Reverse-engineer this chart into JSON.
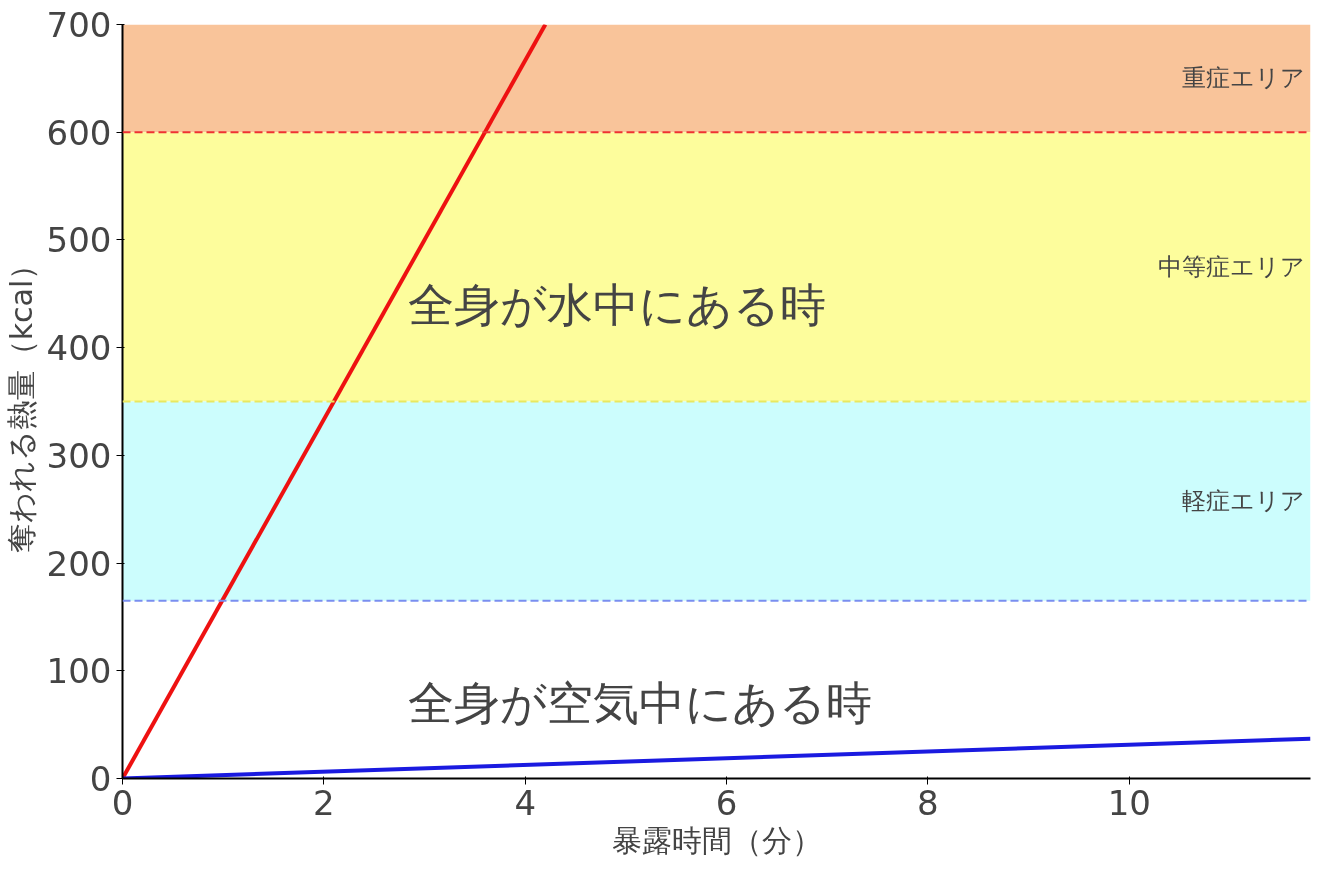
{
  "chart_data": {
    "type": "line",
    "xlabel": "暴露時間（分）",
    "ylabel": "奪われる熱量（kcal）",
    "xlim": [
      0,
      11.8
    ],
    "ylim": [
      0,
      700
    ],
    "xticks": [
      0,
      2,
      4,
      6,
      8,
      10
    ],
    "yticks": [
      0,
      100,
      200,
      300,
      400,
      500,
      600,
      700
    ],
    "series": [
      {
        "name": "全身が水中にある時",
        "color": "#ee1111",
        "x": [
          0,
          4.2
        ],
        "values": [
          0,
          700
        ]
      },
      {
        "name": "全身が空気中にある時",
        "color": "#1a1ae0",
        "x": [
          0,
          11.8
        ],
        "values": [
          0,
          37
        ]
      }
    ],
    "bands": [
      {
        "axis": "y",
        "from": 600,
        "to": 700,
        "label": "重症エリア",
        "color": "#f9c49a"
      },
      {
        "axis": "y",
        "from": 350,
        "to": 600,
        "label": "中等症エリア",
        "color": "#fdfd9c"
      },
      {
        "axis": "y",
        "from": 165,
        "to": 350,
        "label": "軽症エリア",
        "color": "#ccfdfd"
      }
    ],
    "ref_lines": [
      {
        "axis": "y",
        "value": 600,
        "color": "#ee3333",
        "line_style": "dashed"
      },
      {
        "axis": "y",
        "value": 350,
        "color": "#e8e860",
        "line_style": "dashed"
      },
      {
        "axis": "y",
        "value": 165,
        "color": "#7a8ef0",
        "line_style": "dashed"
      }
    ],
    "grid": false,
    "marker": "none",
    "line_style": "solid"
  }
}
